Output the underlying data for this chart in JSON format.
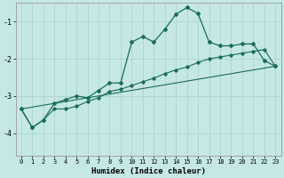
{
  "xlabel": "Humidex (Indice chaleur)",
  "bg_color": "#c5e8e5",
  "grid_color": "#aad4d0",
  "line_color": "#1a6b5a",
  "xlim": [
    -0.5,
    23.5
  ],
  "ylim": [
    -4.6,
    -0.5
  ],
  "yticks": [
    -4,
    -3,
    -2,
    -1
  ],
  "xticks": [
    0,
    1,
    2,
    3,
    4,
    5,
    6,
    7,
    8,
    9,
    10,
    11,
    12,
    13,
    14,
    15,
    16,
    17,
    18,
    19,
    20,
    21,
    22,
    23
  ],
  "line1_x": [
    0,
    1,
    2,
    3,
    4,
    5,
    6,
    7,
    8,
    9,
    10,
    11,
    12,
    13,
    14,
    15,
    16,
    17,
    18,
    19,
    20,
    21,
    22,
    23
  ],
  "line1_y": [
    -3.35,
    -3.85,
    -3.65,
    -3.2,
    -3.1,
    -3.0,
    -3.05,
    -2.85,
    -2.65,
    -2.65,
    -1.55,
    -1.4,
    -1.55,
    -1.2,
    -0.8,
    -0.62,
    -0.78,
    -1.55,
    -1.65,
    -1.65,
    -1.6,
    -1.6,
    -2.05,
    -2.2
  ],
  "line2_x": [
    0,
    1,
    2,
    3,
    4,
    5,
    6,
    7,
    8,
    9,
    10,
    11,
    12,
    13,
    14,
    15,
    16,
    17,
    18,
    19,
    20,
    21,
    22,
    23
  ],
  "line2_y": [
    -3.35,
    -3.85,
    -3.65,
    -3.35,
    -3.35,
    -3.28,
    -3.15,
    -3.05,
    -2.88,
    -2.82,
    -2.72,
    -2.62,
    -2.52,
    -2.4,
    -2.3,
    -2.22,
    -2.1,
    -2.0,
    -1.95,
    -1.9,
    -1.85,
    -1.8,
    -1.75,
    -2.2
  ],
  "line3_x": [
    0,
    23
  ],
  "line3_y": [
    -3.35,
    -2.2
  ]
}
